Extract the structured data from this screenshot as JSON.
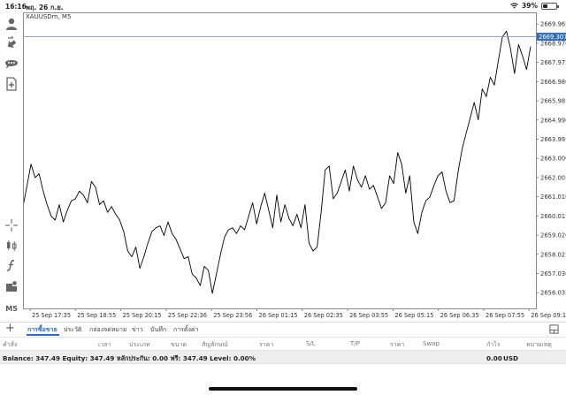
{
  "status_bar": {
    "time": "16:16",
    "date": "พฤ. 26 ก.ย.",
    "battery": "39%",
    "battery_level": 0.39
  },
  "chart": {
    "symbol_label": "XAUUSDm, M5",
    "current_price": "2669.307",
    "current_price_color": "#2f6db5",
    "line_color": "#000000",
    "grid": false
  },
  "chart_data": {
    "type": "line",
    "title": "",
    "xlabel": "",
    "ylabel": "",
    "ylim": [
      2655.22,
      2670.57
    ],
    "y_ticks": [
      "2669.965",
      "2668.970",
      "2667.975",
      "2666.980",
      "2665.985",
      "2664.990",
      "2663.995",
      "2663.000",
      "2662.005",
      "2661.010",
      "2660.015",
      "2659.020",
      "2658.025",
      "2657.030",
      "2656.035"
    ],
    "x_ticks": [
      "25 Sep 17:35",
      "25 Sep 18:55",
      "25 Sep 20:15",
      "25 Sep 22:36",
      "25 Sep 23:56",
      "26 Sep 01:15",
      "26 Sep 02:35",
      "26 Sep 03:55",
      "26 Sep 05:15",
      "26 Sep 06:35",
      "26 Sep 07:55",
      "26 Sep 09:15"
    ],
    "series": [
      {
        "values": [
          2660.5,
          2661.6,
          2662.7,
          2662.0,
          2662.2,
          2661.3,
          2660.6,
          2660.0,
          2659.8,
          2660.6,
          2659.7,
          2660.3,
          2660.8,
          2660.9,
          2661.3,
          2661.1,
          2660.7,
          2661.8,
          2661.5,
          2660.6,
          2660.8,
          2660.2,
          2660.5,
          2660.1,
          2659.8,
          2659.2,
          2658.2,
          2657.9,
          2658.4,
          2657.3,
          2657.9,
          2658.6,
          2659.2,
          2659.4,
          2659.5,
          2659.0,
          2659.7,
          2659.1,
          2658.8,
          2658.3,
          2657.8,
          2657.9,
          2657.0,
          2656.8,
          2656.4,
          2657.4,
          2657.2,
          2656.0,
          2657.0,
          2658.0,
          2658.9,
          2659.3,
          2659.4,
          2659.1,
          2659.5,
          2659.3,
          2660.0,
          2660.7,
          2659.6,
          2660.5,
          2661.2,
          2660.3,
          2659.4,
          2661.1,
          2659.7,
          2660.6,
          2659.9,
          2659.5,
          2660.1,
          2659.4,
          2660.6,
          2658.6,
          2658.2,
          2658.4,
          2660.2,
          2662.4,
          2662.6,
          2660.9,
          2661.2,
          2661.8,
          2662.4,
          2661.3,
          2662.6,
          2661.9,
          2661.5,
          2662.1,
          2661.4,
          2661.6,
          2661.0,
          2660.4,
          2660.7,
          2662.1,
          2661.7,
          2663.3,
          2662.7,
          2661.2,
          2662.1,
          2659.7,
          2659.1,
          2660.2,
          2660.8,
          2661.0,
          2661.6,
          2662.1,
          2662.3,
          2661.3,
          2660.7,
          2660.8,
          2662.3,
          2663.5,
          2664.3,
          2665.1,
          2665.9,
          2665.0,
          2666.6,
          2666.2,
          2667.2,
          2666.8,
          2668.1,
          2669.3,
          2669.6,
          2668.7,
          2667.4,
          2668.9,
          2668.3,
          2667.6,
          2668.8
        ],
        "color": "#000000"
      }
    ]
  },
  "tabs": {
    "items": [
      "การซื้อขาย",
      "ประวัติ",
      "กล่องจดหมาย",
      "ข่าว",
      "บันทึก",
      "การตั้งค่า"
    ],
    "active_index": 0
  },
  "columns": [
    "คำสั่ง",
    "เวลา",
    "ประเภท",
    "ขนาด",
    "สัญลักษณ์",
    "ราคา",
    "S/L",
    "T/P",
    "ราคา",
    "Swap",
    "กำไร",
    "หมายเหตุ"
  ],
  "balance": {
    "text": "Balance: 347.49 Equity: 347.49 หลักประกัน: 0.00 ฟรี: 347.49 Level: 0.00%",
    "profit": "0.00",
    "currency": "USD"
  },
  "icons": {
    "toolbar": [
      "account-icon",
      "trade-icon",
      "chat-icon",
      "add-chart-icon",
      "crosshair-icon",
      "indicators-icon",
      "function-icon",
      "objects-icon"
    ],
    "timeframe": "M5"
  }
}
